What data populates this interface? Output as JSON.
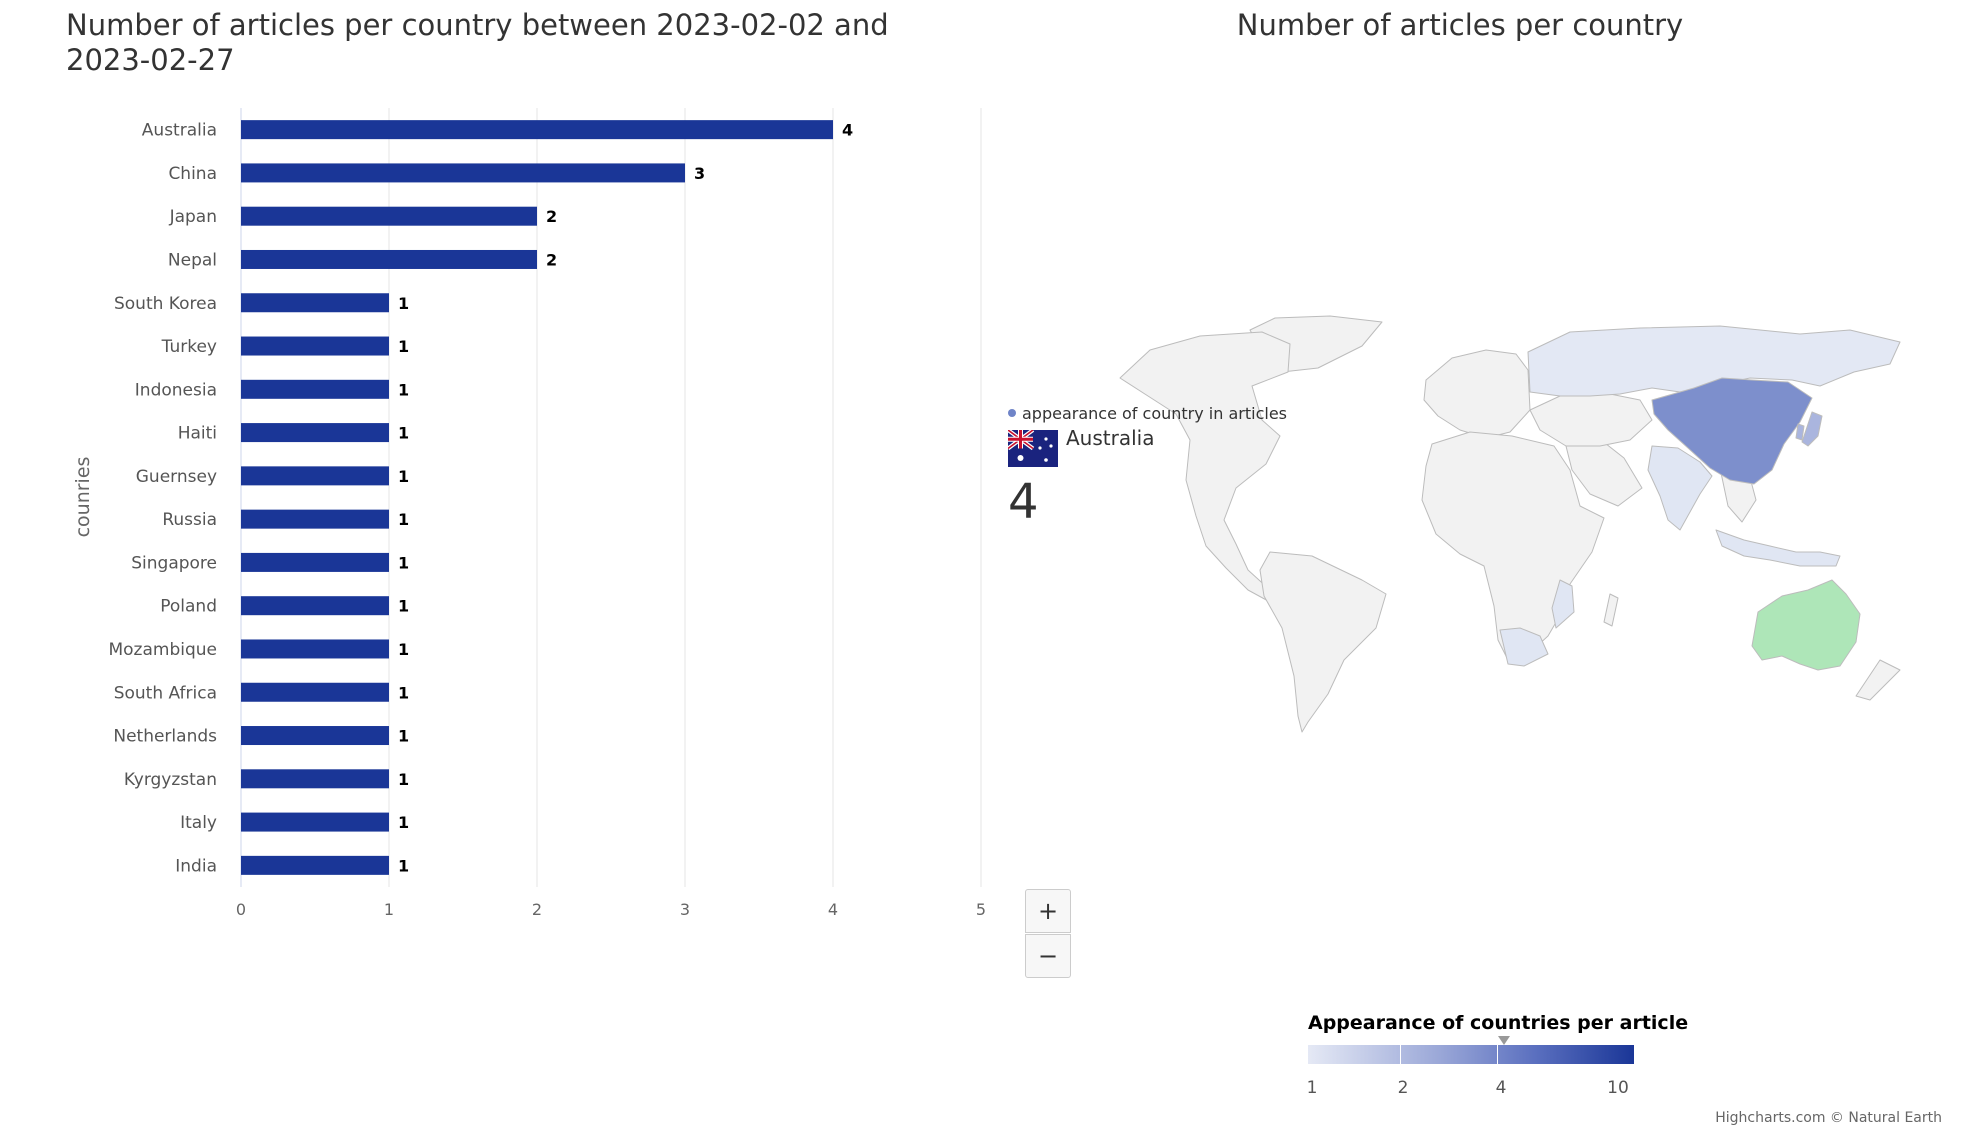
{
  "chart_data": [
    {
      "type": "bar",
      "orientation": "horizontal",
      "title": "Number of articles per country between 2023-02-02 and 2023-02-27",
      "ylabel": "counries",
      "categories": [
        "Australia",
        "China",
        "Japan",
        "Nepal",
        "South Korea",
        "Turkey",
        "Indonesia",
        "Haiti",
        "Guernsey",
        "Russia",
        "Singapore",
        "Poland",
        "Mozambique",
        "South Africa",
        "Netherlands",
        "Kyrgyzstan",
        "Italy",
        "India"
      ],
      "values": [
        4,
        3,
        2,
        2,
        1,
        1,
        1,
        1,
        1,
        1,
        1,
        1,
        1,
        1,
        1,
        1,
        1,
        1
      ],
      "xlim": [
        0,
        5
      ],
      "xticks": [
        "0",
        "1",
        "2",
        "3",
        "4",
        "5"
      ],
      "grid": true,
      "data_labels": true,
      "bar_color": "#1a3697"
    },
    {
      "type": "choropleth-map",
      "title": "Number of articles per country",
      "highlighted_countries": [
        {
          "name": "China",
          "color": "#7d8fcc"
        },
        {
          "name": "Russia",
          "color": "#e3e8f4"
        },
        {
          "name": "Australia",
          "color": "#aee6b8",
          "state": "hover"
        },
        {
          "name": "India",
          "color": "#e0e6f3"
        },
        {
          "name": "Japan",
          "color": "#aab5de"
        },
        {
          "name": "South Africa",
          "color": "#e0e6f3"
        },
        {
          "name": "Mozambique",
          "color": "#e0e6f3"
        },
        {
          "name": "Indonesia",
          "color": "#e0e6f3"
        }
      ],
      "colors": {
        "land": "#f2f2f2",
        "border": "#bcbcbc"
      }
    }
  ],
  "tooltip": {
    "series": "appearance of country in articles",
    "country": "Australia",
    "value": "4",
    "flag_icon": "australia-flag-icon"
  },
  "zoom": {
    "in_label": "+",
    "out_label": "−"
  },
  "legend": {
    "title": "Appearance of countries per article",
    "ticks": [
      "1",
      "2",
      "4",
      "10"
    ],
    "current_value": 4
  },
  "credits": "Highcharts.com © Natural Earth"
}
